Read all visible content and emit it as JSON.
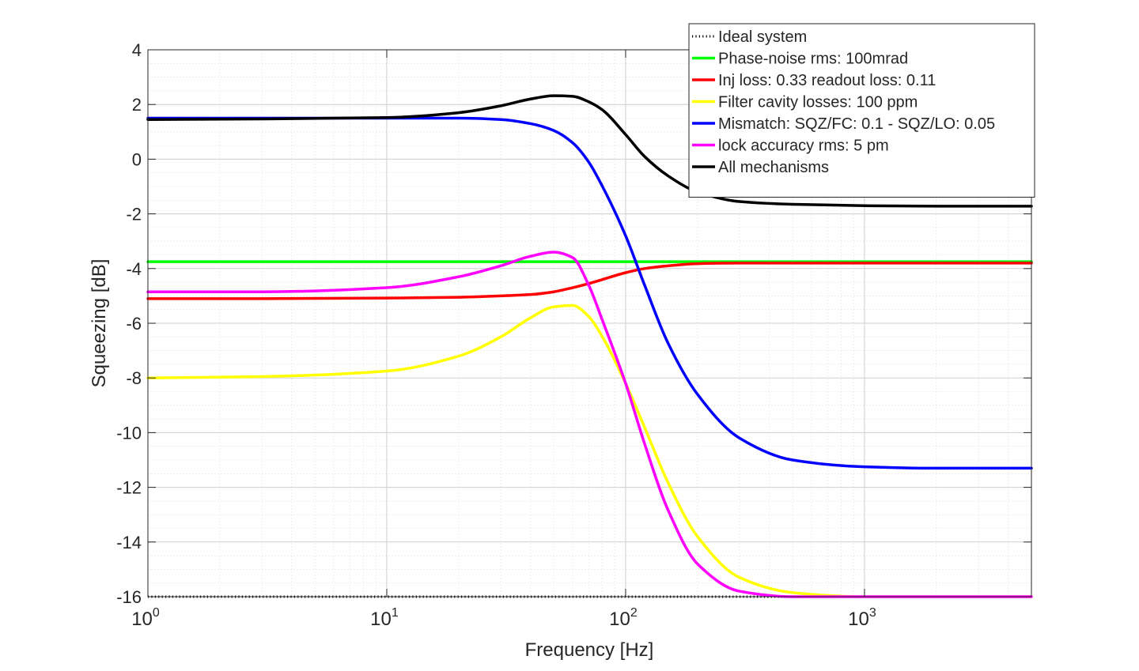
{
  "chart_data": {
    "type": "line",
    "title": "",
    "xlabel": "Frequency [Hz]",
    "ylabel": "Squeezing [dB]",
    "xscale": "log",
    "xlim": [
      1,
      5000
    ],
    "ylim": [
      -16,
      4
    ],
    "grid": true,
    "minor_grid": true,
    "legend_position": "top-right",
    "x_ticks": [
      {
        "base": "10",
        "exp": "0"
      },
      {
        "base": "10",
        "exp": "1"
      },
      {
        "base": "10",
        "exp": "2"
      },
      {
        "base": "10",
        "exp": "3"
      }
    ],
    "y_ticks": [
      "4",
      "2",
      "0",
      "-2",
      "-4",
      "-6",
      "-8",
      "-10",
      "-12",
      "-14",
      "-16"
    ],
    "x": [
      1,
      3,
      10,
      20,
      30,
      40,
      50,
      60,
      70,
      80,
      100,
      120,
      150,
      200,
      300,
      500,
      1000,
      2000,
      5000
    ],
    "series": [
      {
        "name": "Ideal system",
        "color": "#000000",
        "style": "dotted",
        "values": [
          -16.0,
          -16.0,
          -16.0,
          -16.0,
          -16.0,
          -16.0,
          -16.0,
          -16.0,
          -16.0,
          -16.0,
          -16.0,
          -16.0,
          -16.0,
          -16.0,
          -16.0,
          -16.0,
          -16.0,
          -16.0,
          -16.0
        ]
      },
      {
        "name": "Phase-noise rms: 100mrad",
        "color": "#00ff00",
        "style": "solid",
        "values": [
          -3.75,
          -3.75,
          -3.75,
          -3.75,
          -3.75,
          -3.75,
          -3.75,
          -3.75,
          -3.75,
          -3.75,
          -3.75,
          -3.75,
          -3.75,
          -3.75,
          -3.75,
          -3.75,
          -3.75,
          -3.75,
          -3.75
        ]
      },
      {
        "name": "Inj loss: 0.33 readout loss: 0.11",
        "color": "#ff0000",
        "style": "solid",
        "values": [
          -5.1,
          -5.1,
          -5.08,
          -5.05,
          -5.0,
          -4.95,
          -4.85,
          -4.7,
          -4.55,
          -4.4,
          -4.15,
          -4.0,
          -3.9,
          -3.82,
          -3.8,
          -3.8,
          -3.8,
          -3.8,
          -3.8
        ]
      },
      {
        "name": "Filter cavity losses: 100 ppm",
        "color": "#ffff00",
        "style": "solid",
        "values": [
          -8.0,
          -7.95,
          -7.75,
          -7.2,
          -6.5,
          -5.8,
          -5.4,
          -5.35,
          -5.75,
          -6.5,
          -8.2,
          -9.8,
          -11.8,
          -13.8,
          -15.3,
          -15.85,
          -16.0,
          -16.0,
          -16.0
        ]
      },
      {
        "name": "Mismatch: SQZ/FC: 0.1 - SQZ/LO: 0.05",
        "color": "#0000ff",
        "style": "solid",
        "values": [
          1.5,
          1.5,
          1.5,
          1.5,
          1.45,
          1.3,
          1.05,
          0.6,
          -0.1,
          -1.0,
          -2.8,
          -4.6,
          -6.7,
          -8.6,
          -10.2,
          -11.0,
          -11.25,
          -11.3,
          -11.3
        ]
      },
      {
        "name": "lock accuracy rms: 5 pm",
        "color": "#ff00ff",
        "style": "solid",
        "values": [
          -4.85,
          -4.85,
          -4.7,
          -4.3,
          -3.9,
          -3.55,
          -3.4,
          -3.6,
          -4.6,
          -5.9,
          -8.2,
          -10.4,
          -12.8,
          -14.8,
          -15.8,
          -16.0,
          -16.0,
          -16.0,
          -16.0
        ]
      },
      {
        "name": "All mechanisms",
        "color": "#000000",
        "style": "solid",
        "values": [
          1.45,
          1.47,
          1.52,
          1.7,
          1.95,
          2.2,
          2.32,
          2.3,
          2.1,
          1.8,
          0.9,
          0.1,
          -0.6,
          -1.2,
          -1.55,
          -1.65,
          -1.7,
          -1.72,
          -1.72
        ]
      }
    ]
  }
}
